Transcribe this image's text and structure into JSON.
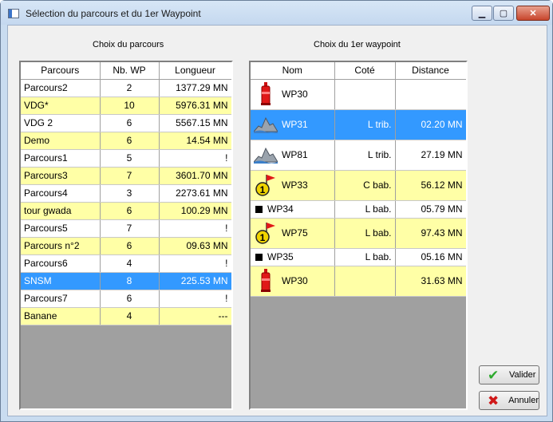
{
  "window": {
    "title": "Sélection du parcours et du 1er Waypoint",
    "min_glyph": "▁",
    "max_glyph": "▢",
    "close_glyph": "✕"
  },
  "parcours_panel": {
    "caption": "Choix du parcours",
    "columns": [
      "Parcours",
      "Nb. WP",
      "Longueur"
    ],
    "rows": [
      {
        "name": "Parcours2",
        "nb": "2",
        "length": "1377.29 MN",
        "style": "white"
      },
      {
        "name": "VDG*",
        "nb": "10",
        "length": "5976.31 MN",
        "style": "yellow"
      },
      {
        "name": "VDG 2",
        "nb": "6",
        "length": "5567.15 MN",
        "style": "white"
      },
      {
        "name": "Demo",
        "nb": "6",
        "length": "14.54 MN",
        "style": "yellow"
      },
      {
        "name": "Parcours1",
        "nb": "5",
        "length": "!",
        "style": "white"
      },
      {
        "name": "Parcours3",
        "nb": "7",
        "length": "3601.70 MN",
        "style": "yellow"
      },
      {
        "name": "Parcours4",
        "nb": "3",
        "length": "2273.61 MN",
        "style": "white"
      },
      {
        "name": "tour gwada",
        "nb": "6",
        "length": "100.29 MN",
        "style": "yellow"
      },
      {
        "name": "Parcours5",
        "nb": "7",
        "length": "!",
        "style": "white"
      },
      {
        "name": "Parcours n°2",
        "nb": "6",
        "length": "09.63 MN",
        "style": "yellow"
      },
      {
        "name": "Parcours6",
        "nb": "4",
        "length": "!",
        "style": "white"
      },
      {
        "name": "SNSM",
        "nb": "8",
        "length": "225.53 MN",
        "style": "sel"
      },
      {
        "name": "Parcours7",
        "nb": "6",
        "length": "!",
        "style": "white"
      },
      {
        "name": "Banane",
        "nb": "4",
        "length": "---",
        "style": "yellow"
      }
    ]
  },
  "waypoint_panel": {
    "caption": "Choix du 1er waypoint",
    "columns": [
      "Nom",
      "Coté",
      "Distance"
    ],
    "rows": [
      {
        "name": "WP30",
        "icon": "red-buoy-icon",
        "side": "",
        "distance": "",
        "style": "white",
        "tall": true
      },
      {
        "name": "WP31",
        "icon": "rock-icon",
        "side": "L trib.",
        "distance": "02.20 MN",
        "style": "sel",
        "tall": true
      },
      {
        "name": "WP81",
        "icon": "rock-icon",
        "side": "L trib.",
        "distance": "27.19 MN",
        "style": "white",
        "tall": true
      },
      {
        "name": "WP33",
        "icon": "flag-marker-icon",
        "side": "C bab.",
        "distance": "56.12 MN",
        "style": "yellow",
        "tall": true
      },
      {
        "name": "WP34",
        "icon": "square-point-icon",
        "side": "L bab.",
        "distance": "05.79 MN",
        "style": "white",
        "tall": false
      },
      {
        "name": "WP75",
        "icon": "flag-marker-icon",
        "side": "L bab.",
        "distance": "97.43 MN",
        "style": "yellow",
        "tall": true
      },
      {
        "name": "WP35",
        "icon": "square-point-icon",
        "side": "L bab.",
        "distance": "05.16 MN",
        "style": "white",
        "tall": false
      },
      {
        "name": "WP30",
        "icon": "red-buoy-icon",
        "side": "",
        "distance": "31.63 MN",
        "style": "yellow",
        "tall": true
      }
    ]
  },
  "buttons": {
    "validate_label": "Valider",
    "cancel_label": "Annuler",
    "validate_glyph": "✔",
    "cancel_glyph": "✖"
  },
  "colors": {
    "selection": "#3399ff",
    "row_alt": "#ffffa6",
    "grid_background": "#a0a0a0",
    "validate_icon": "#2eaa2e",
    "cancel_icon": "#d01818"
  }
}
